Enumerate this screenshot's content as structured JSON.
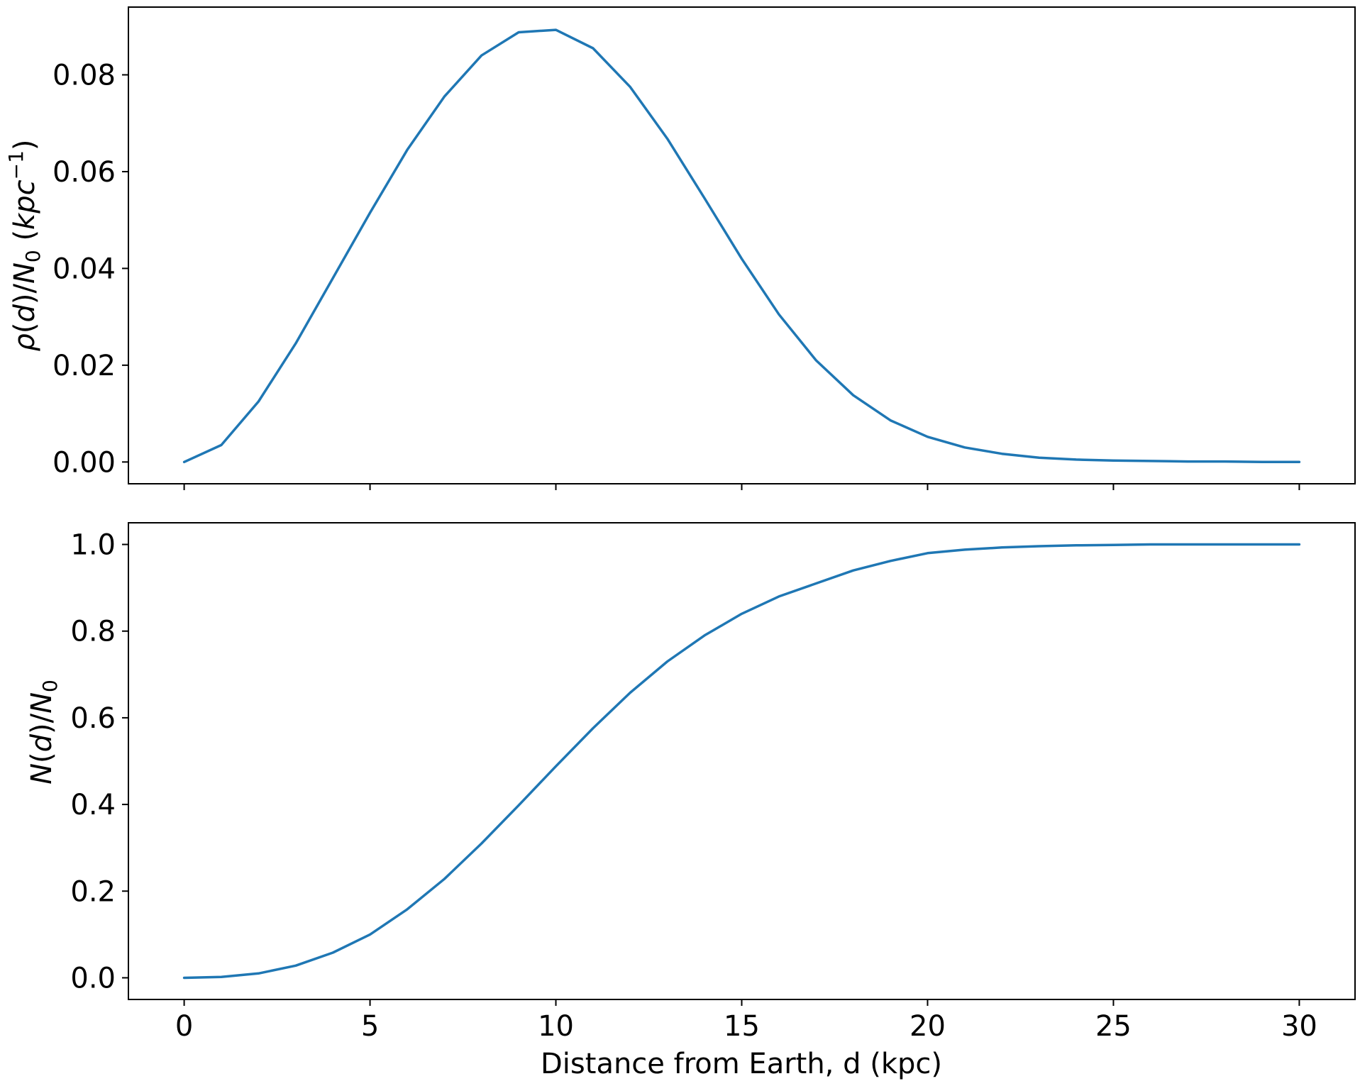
{
  "chart_data": [
    {
      "type": "line",
      "panel": "top",
      "ylabel": {
        "rho": "ρ",
        "d": "d",
        "N": "N",
        "sub0": "0",
        "unit": "kpc",
        "exp": "−1"
      },
      "xlim": [
        -1.5,
        31.5
      ],
      "ylim": [
        -0.0045,
        0.094
      ],
      "x_ticks": [
        0,
        5,
        10,
        15,
        20,
        25,
        30
      ],
      "y_ticks": [
        "0.00",
        "0.02",
        "0.04",
        "0.06",
        "0.08"
      ],
      "y_tick_values": [
        0.0,
        0.02,
        0.04,
        0.06,
        0.08
      ],
      "series": [
        {
          "color": "#1f77b4",
          "x": [
            0,
            1,
            2,
            3,
            4,
            5,
            6,
            7,
            8,
            9,
            10,
            11,
            12,
            13,
            14,
            15,
            16,
            17,
            18,
            19,
            20,
            21,
            22,
            23,
            24,
            25,
            26,
            27,
            28,
            29,
            30
          ],
          "y": [
            0.0,
            0.0035,
            0.0125,
            0.0245,
            0.038,
            0.0515,
            0.0645,
            0.0755,
            0.084,
            0.0888,
            0.0893,
            0.0855,
            0.0775,
            0.0668,
            0.0545,
            0.042,
            0.0305,
            0.021,
            0.0138,
            0.0086,
            0.0052,
            0.003,
            0.0017,
            0.0009,
            0.0005,
            0.0003,
            0.0002,
            0.0001,
            0.0001,
            0.0,
            0.0
          ]
        }
      ]
    },
    {
      "type": "line",
      "panel": "bottom",
      "xlabel": "Distance from Earth, d (kpc)",
      "ylabel": {
        "N": "N",
        "d": "d",
        "sub0": "0"
      },
      "xlim": [
        -1.5,
        31.5
      ],
      "ylim": [
        -0.05,
        1.05
      ],
      "x_ticks": [
        0,
        5,
        10,
        15,
        20,
        25,
        30
      ],
      "y_ticks": [
        "0.0",
        "0.2",
        "0.4",
        "0.6",
        "0.8",
        "1.0"
      ],
      "y_tick_values": [
        0.0,
        0.2,
        0.4,
        0.6,
        0.8,
        1.0
      ],
      "series": [
        {
          "color": "#1f77b4",
          "x": [
            0,
            1,
            2,
            3,
            4,
            5,
            6,
            7,
            8,
            9,
            10,
            11,
            12,
            13,
            14,
            15,
            16,
            17,
            18,
            19,
            20,
            21,
            22,
            23,
            24,
            25,
            26,
            27,
            28,
            29,
            30
          ],
          "y": [
            0.0,
            0.002,
            0.01,
            0.028,
            0.058,
            0.1,
            0.158,
            0.228,
            0.31,
            0.398,
            0.488,
            0.576,
            0.658,
            0.73,
            0.79,
            0.84,
            0.88,
            0.91,
            0.94,
            0.962,
            0.98,
            0.988,
            0.993,
            0.996,
            0.998,
            0.999,
            1.0,
            1.0,
            1.0,
            1.0,
            1.0
          ]
        }
      ]
    }
  ]
}
